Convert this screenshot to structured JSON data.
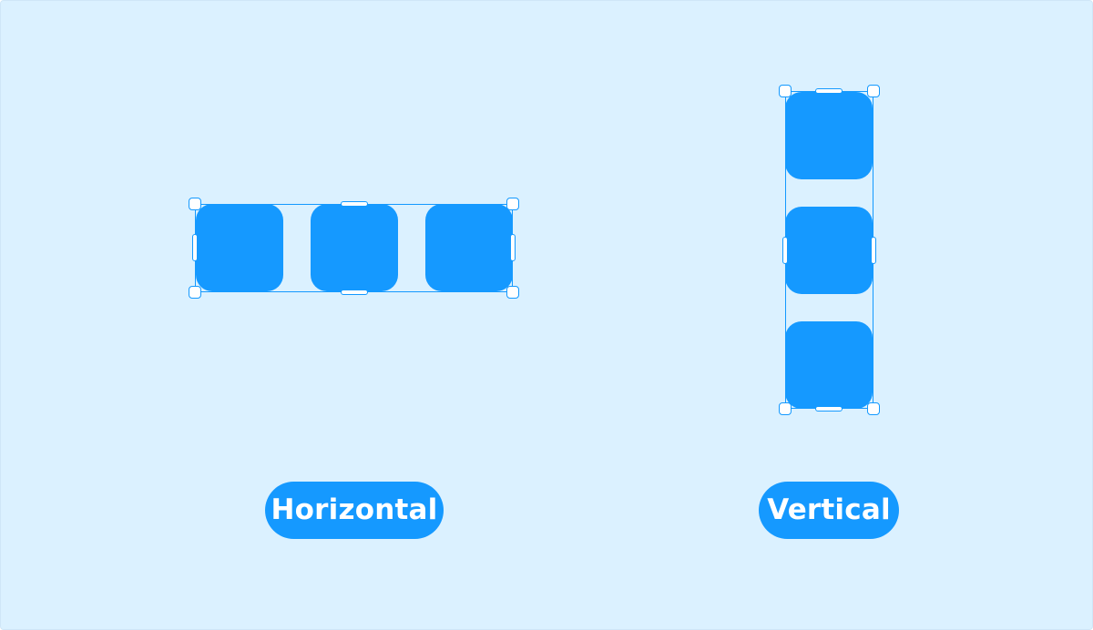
{
  "labels": {
    "horizontal": "Horizontal",
    "vertical": "Vertical"
  },
  "colors": {
    "background": "#dbf1ff",
    "accent": "#1599ff",
    "selection": "#1399ff",
    "label_text": "#ffffff"
  },
  "groups": [
    {
      "name": "horizontal",
      "orientation": "horizontal",
      "item_count": 3
    },
    {
      "name": "vertical",
      "orientation": "vertical",
      "item_count": 3
    }
  ]
}
